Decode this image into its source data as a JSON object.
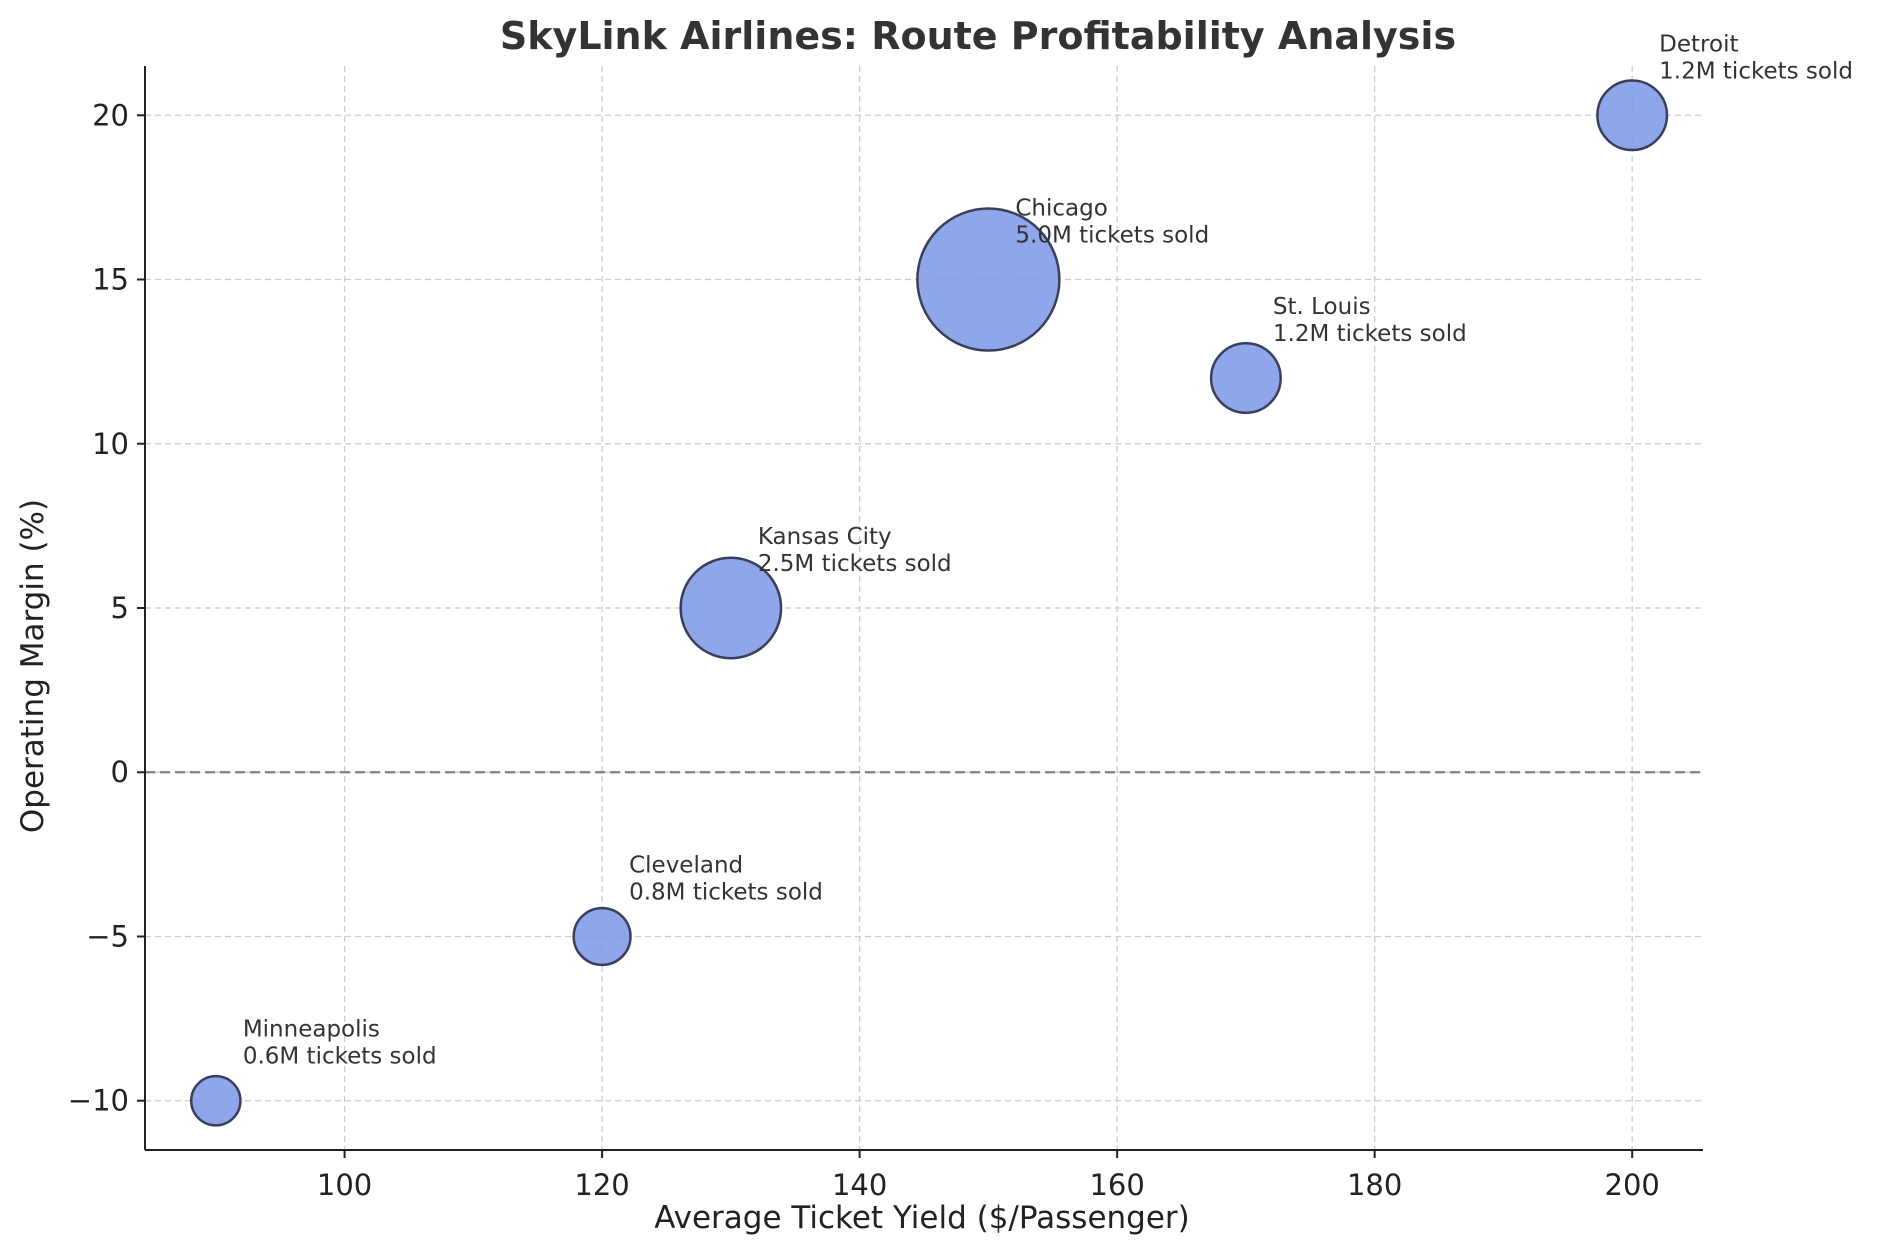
{
  "chart_data": {
    "type": "scatter",
    "variant": "bubble",
    "title": "SkyLink Airlines: Route Profitability Analysis",
    "xlabel": "Average Ticket Yield ($/Passenger)",
    "ylabel": "Operating Margin (%)",
    "xlim": [
      84.5,
      205.5
    ],
    "ylim": [
      -11.5,
      21.5
    ],
    "xticks": [
      100,
      120,
      140,
      160,
      180,
      200
    ],
    "yticks": [
      -10,
      -5,
      0,
      5,
      10,
      15,
      20
    ],
    "ytick_labels": [
      "−10",
      "−5",
      "0",
      "5",
      "10",
      "15",
      "20"
    ],
    "grid": true,
    "reference_line_y": 0,
    "bubble_color": "#7b96e8",
    "bubble_edge_color": "#3a3f5c",
    "size_unit": "M tickets sold",
    "points": [
      {
        "route": "Minneapolis",
        "x": 90,
        "y": -10,
        "tickets_m": 0.6,
        "label": "0.6M tickets sold"
      },
      {
        "route": "Cleveland",
        "x": 120,
        "y": -5,
        "tickets_m": 0.8,
        "label": "0.8M tickets sold"
      },
      {
        "route": "Kansas City",
        "x": 130,
        "y": 5,
        "tickets_m": 2.5,
        "label": "2.5M tickets sold"
      },
      {
        "route": "Chicago",
        "x": 150,
        "y": 15,
        "tickets_m": 5.0,
        "label": "5.0M tickets sold"
      },
      {
        "route": "St. Louis",
        "x": 170,
        "y": 12,
        "tickets_m": 1.2,
        "label": "1.2M tickets sold"
      },
      {
        "route": "Detroit",
        "x": 200,
        "y": 20,
        "tickets_m": 1.2,
        "label": "1.2M tickets sold"
      }
    ]
  }
}
